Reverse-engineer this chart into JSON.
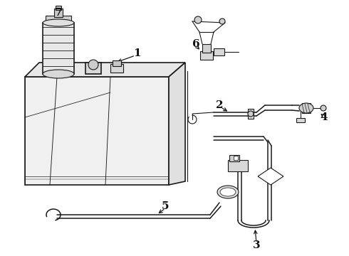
{
  "background_color": "#ffffff",
  "line_color": "#1a1a1a",
  "label_color": "#111111",
  "figsize": [
    4.9,
    3.6
  ],
  "dpi": 100
}
